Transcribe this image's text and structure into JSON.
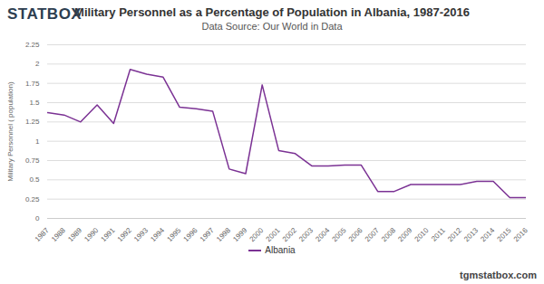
{
  "chart_data": {
    "type": "line",
    "logo": "STATBOX",
    "title": "Military Personnel as a Percentage of Population in Albania, 1987-2016",
    "subtitle": "Data Source: Our World in Data",
    "y_label": "Military Personnel ( population)",
    "watermark": "tgmstatbox.com",
    "x": [
      1987,
      1988,
      1989,
      1990,
      1991,
      1992,
      1993,
      1994,
      1995,
      1996,
      1997,
      1998,
      1999,
      2000,
      2001,
      2002,
      2003,
      2004,
      2005,
      2006,
      2007,
      2008,
      2009,
      2010,
      2011,
      2012,
      2013,
      2014,
      2015,
      2016
    ],
    "series": [
      {
        "name": "Albania",
        "color": "#7b3294",
        "values": [
          1.37,
          1.34,
          1.25,
          1.47,
          1.23,
          1.93,
          1.87,
          1.83,
          1.44,
          1.42,
          1.39,
          0.64,
          0.58,
          1.73,
          0.88,
          0.84,
          0.68,
          0.68,
          0.69,
          0.69,
          0.35,
          0.35,
          0.44,
          0.44,
          0.44,
          0.44,
          0.48,
          0.48,
          0.27,
          0.27
        ]
      }
    ],
    "xlim": [
      1987,
      2016
    ],
    "xticks": [
      1987,
      1988,
      1989,
      1990,
      1991,
      1992,
      1993,
      1994,
      1995,
      1996,
      1997,
      1998,
      1999,
      2000,
      2001,
      2002,
      2003,
      2004,
      2005,
      2006,
      2007,
      2008,
      2009,
      2010,
      2011,
      2012,
      2013,
      2014,
      2015,
      2016
    ],
    "ylim": [
      0,
      2.25
    ],
    "yticks": [
      0,
      0.25,
      0.5,
      0.75,
      1,
      1.25,
      1.5,
      1.75,
      2,
      2.25
    ],
    "grid": true,
    "legend": "bottom"
  }
}
